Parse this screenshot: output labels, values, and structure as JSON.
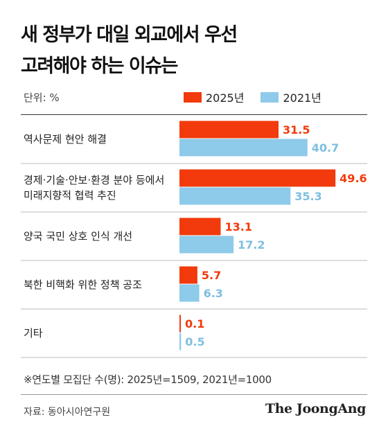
{
  "title_line1": "새 정부가 대일 외교에서 우선",
  "title_line2": "고려해야 하는 이슈는",
  "unit": "단위: %",
  "colors": {
    "2025": "#f23a0c",
    "2021": "#8ecae9",
    "text2025": "#f23a0c",
    "text2021": "#7ebfe0"
  },
  "footnote": "※연도별 모집단 수(명): 2025년=1509, 2021년=1000",
  "source": "자료: 동아시아연구원",
  "logo": "The JoongAng",
  "chart_data": {
    "type": "bar",
    "orientation": "horizontal",
    "categories": [
      [
        "역사문제 현안 해결"
      ],
      [
        "경제·기술·안보·환경 분야 등에서",
        "미래지향적 협력 추진"
      ],
      [
        "양국 국민 상호 인식 개선"
      ],
      [
        "북한 비핵화 위한 정책 공조"
      ],
      [
        "기타"
      ]
    ],
    "series": [
      {
        "name": "2025년",
        "values": [
          31.5,
          49.6,
          13.1,
          5.7,
          0.1
        ]
      },
      {
        "name": "2021년",
        "values": [
          40.7,
          35.3,
          17.2,
          6.3,
          0.5
        ]
      }
    ],
    "value_labels": [
      [
        "31.5",
        "49.6",
        "13.1",
        "5.7",
        "0.1"
      ],
      [
        "40.7",
        "35.3",
        "17.2",
        "6.3",
        "0.5"
      ]
    ],
    "xlim": [
      0,
      50
    ],
    "grid": false,
    "legend_position": "top"
  }
}
